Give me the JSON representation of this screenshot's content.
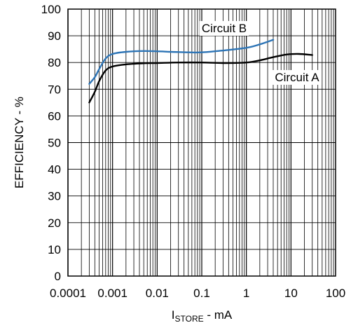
{
  "chart_data": {
    "type": "line",
    "xscale": "log",
    "xlim": [
      0.0001,
      100
    ],
    "ylim": [
      0,
      100
    ],
    "grid": true,
    "x_tick_labels": [
      "0.0001",
      "0.001",
      "0.01",
      "0.1",
      "1",
      "10",
      "100"
    ],
    "y_tick_labels": [
      "0",
      "10",
      "20",
      "30",
      "40",
      "50",
      "60",
      "70",
      "80",
      "90",
      "100"
    ],
    "xlabel_main": "I",
    "xlabel_sub": "STORE",
    "xlabel_suffix": " - mA",
    "ylabel": "EFFICIENCY - %",
    "series": [
      {
        "name": "Circuit A",
        "color": "#000000",
        "points": [
          [
            0.0003,
            65
          ],
          [
            0.0004,
            69
          ],
          [
            0.0005,
            73
          ],
          [
            0.0007,
            77
          ],
          [
            0.001,
            78.5
          ],
          [
            0.002,
            79.3
          ],
          [
            0.005,
            79.7
          ],
          [
            0.01,
            79.8
          ],
          [
            0.03,
            80
          ],
          [
            0.1,
            80
          ],
          [
            0.3,
            79.8
          ],
          [
            1,
            80
          ],
          [
            2,
            80.8
          ],
          [
            4,
            82
          ],
          [
            8,
            83
          ],
          [
            15,
            83.2
          ],
          [
            30,
            82.8
          ]
        ]
      },
      {
        "name": "Circuit B",
        "color": "#2e75b6",
        "points": [
          [
            0.0003,
            72
          ],
          [
            0.0004,
            74.5
          ],
          [
            0.0005,
            77.5
          ],
          [
            0.0007,
            81.5
          ],
          [
            0.001,
            83.2
          ],
          [
            0.002,
            84
          ],
          [
            0.005,
            84.3
          ],
          [
            0.01,
            84.2
          ],
          [
            0.02,
            84
          ],
          [
            0.05,
            83.8
          ],
          [
            0.1,
            83.8
          ],
          [
            0.3,
            84.5
          ],
          [
            1,
            85.5
          ],
          [
            2,
            86.8
          ],
          [
            4,
            88.5
          ]
        ]
      }
    ]
  }
}
